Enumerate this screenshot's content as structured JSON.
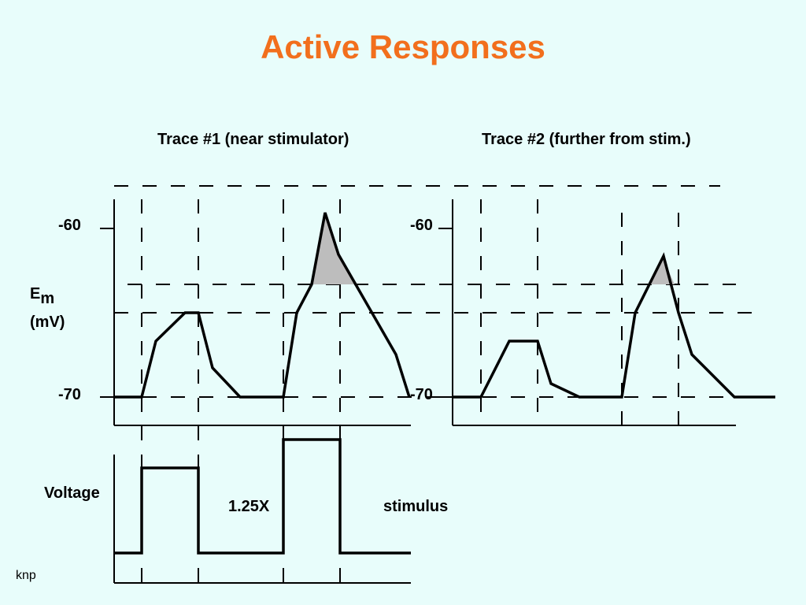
{
  "title": "Active Responses",
  "trace1_label": "Trace #1 (near stimulator)",
  "trace2_label": "Trace #2 (further from stim.)",
  "tick_minus60_left": "-60",
  "tick_minus70_left": "-70",
  "tick_minus60_right": "-60",
  "tick_minus70_right": "-70",
  "ylabel_main": "E",
  "ylabel_sub": "m",
  "ylabel_unit": "(mV)",
  "voltage_label": "Voltage",
  "multiplier_label": "1.25X",
  "stimulus_label": "stimulus",
  "footer": "knp",
  "colors": {
    "title": "#f26f1d",
    "background": "#e8fdfb",
    "shade": "#bdbdbd"
  }
}
